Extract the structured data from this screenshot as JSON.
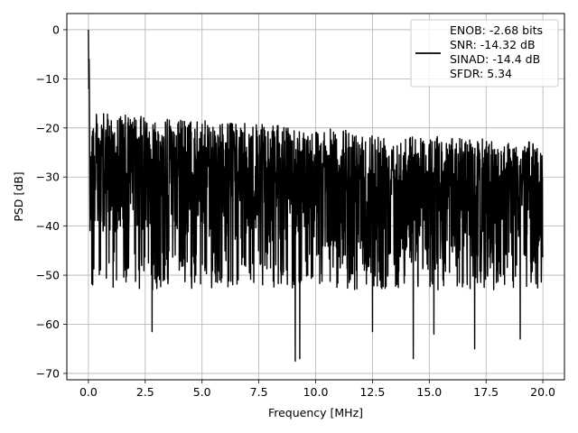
{
  "chart_data": {
    "type": "line",
    "title": "",
    "xlabel": "Frequency [MHz]",
    "ylabel": "PSD [dB]",
    "xlim": [
      -0.95,
      20.95
    ],
    "ylim": [
      -71.3,
      3.3
    ],
    "xticks": [
      0.0,
      2.5,
      5.0,
      7.5,
      10.0,
      12.5,
      15.0,
      17.5,
      20.0
    ],
    "xtick_labels": [
      "0.0",
      "2.5",
      "5.0",
      "7.5",
      "10.0",
      "12.5",
      "15.0",
      "17.5",
      "20.0"
    ],
    "yticks": [
      0,
      -10,
      -20,
      -30,
      -40,
      -50,
      -60,
      -70
    ],
    "ytick_labels": [
      "0",
      "−10",
      "−20",
      "−30",
      "−40",
      "−50",
      "−60",
      "−70"
    ],
    "grid": true,
    "legend_position": "top-right",
    "legend_lines": [
      "ENOB: -2.68 bits",
      "SNR: -14.32 dB",
      "SINAD: -14.4 dB",
      "SFDR: 5.34"
    ],
    "series": [
      {
        "color": "#000000",
        "description": "noise-like PSD trace: peak 0 dB at 0 MHz, dropping to a band roughly between -20 and -47 dB with occasional dips to about -67 dB; upper envelope decays from about -17 dB near 0.5 MHz to about -23 dB at 20 MHz",
        "x_range": [
          0,
          20
        ],
        "peak": {
          "x": 0.0,
          "y": 0.0
        },
        "upper_envelope": [
          [
            0.5,
            -17
          ],
          [
            5,
            -18.5
          ],
          [
            10,
            -20
          ],
          [
            15,
            -21.5
          ],
          [
            20,
            -23
          ]
        ],
        "band_low": -47,
        "min_dips": [
          [
            2.8,
            -61.5
          ],
          [
            9.1,
            -67.5
          ],
          [
            9.3,
            -67
          ],
          [
            12.5,
            -61.5
          ],
          [
            14.3,
            -67
          ],
          [
            15.2,
            -62
          ],
          [
            17.0,
            -65
          ],
          [
            19.0,
            -63
          ]
        ]
      }
    ]
  }
}
